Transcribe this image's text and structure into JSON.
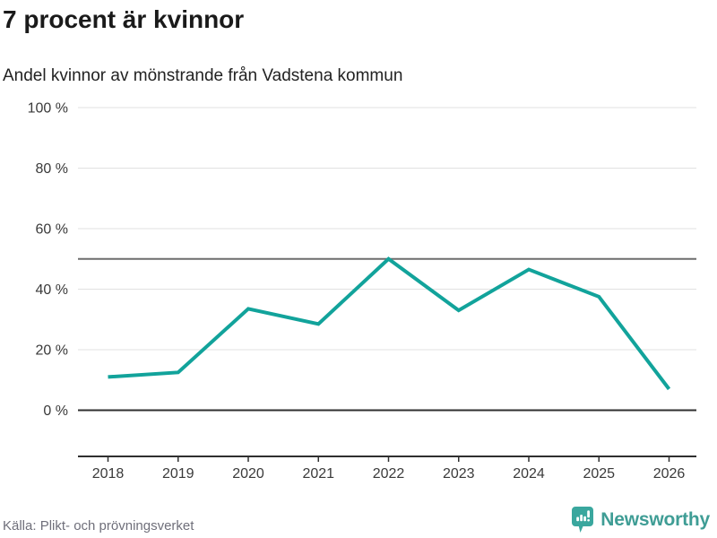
{
  "header": {
    "title": "7 procent är kvinnor",
    "subtitle": "Andel kvinnor av mönstrande från Vadstena kommun"
  },
  "footer": {
    "source": "Källa: Plikt- och prövningsverket",
    "brand": "Newsworthy"
  },
  "colors": {
    "line": "#12a39b",
    "grid": "#e1e1e1",
    "zero_line": "#2f2f2f",
    "axis": "#2f2f2f",
    "reference_line": "#6d6d6d",
    "tick_text": "#3a3a3a",
    "title_text": "#1a1a1a",
    "source_text": "#6f6f7a",
    "brand_teal": "#3f9d95"
  },
  "chart_data": {
    "type": "line",
    "title": "7 procent är kvinnor",
    "subtitle": "Andel kvinnor av mönstrande från Vadstena kommun",
    "categories": [
      "2018",
      "2019",
      "2020",
      "2021",
      "2022",
      "2023",
      "2024",
      "2025",
      "2026"
    ],
    "values": [
      11,
      12.5,
      33.5,
      28.5,
      50,
      33,
      46.5,
      37.5,
      7
    ],
    "xlabel": "",
    "ylabel": "",
    "ylim": [
      0,
      100
    ],
    "yticks": [
      {
        "value": 100,
        "label": "100 %"
      },
      {
        "value": 80,
        "label": "80 %"
      },
      {
        "value": 60,
        "label": "60 %"
      },
      {
        "value": 40,
        "label": "40 %"
      },
      {
        "value": 20,
        "label": "20 %"
      },
      {
        "value": 0,
        "label": "0 %"
      }
    ],
    "reference_line": {
      "value": 50
    },
    "grid": "horizontal-only",
    "legend": "none",
    "source": "Källa: Plikt- och prövningsverket"
  }
}
